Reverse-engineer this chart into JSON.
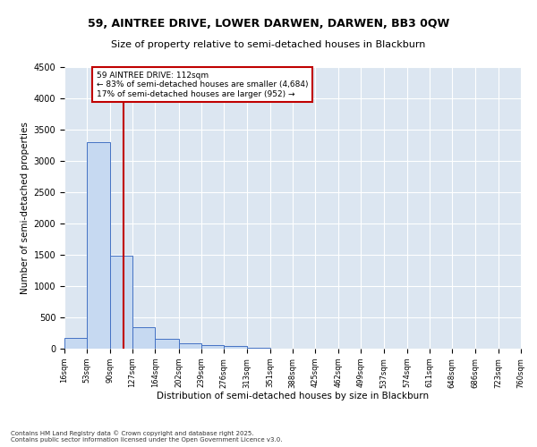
{
  "title1": "59, AINTREE DRIVE, LOWER DARWEN, DARWEN, BB3 0QW",
  "title2": "Size of property relative to semi-detached houses in Blackburn",
  "xlabel": "Distribution of semi-detached houses by size in Blackburn",
  "ylabel": "Number of semi-detached properties",
  "footnote1": "Contains HM Land Registry data © Crown copyright and database right 2025.",
  "footnote2": "Contains public sector information licensed under the Open Government Licence v3.0.",
  "annotation_title": "59 AINTREE DRIVE: 112sqm",
  "annotation_line1": "← 83% of semi-detached houses are smaller (4,684)",
  "annotation_line2": "17% of semi-detached houses are larger (952) →",
  "property_size": 112,
  "bin_edges": [
    16,
    53,
    90,
    127,
    164,
    202,
    239,
    276,
    313,
    351,
    388,
    425,
    462,
    499,
    537,
    574,
    611,
    648,
    686,
    723,
    760
  ],
  "bin_counts": [
    175,
    3300,
    1480,
    350,
    155,
    90,
    60,
    40,
    15,
    0,
    0,
    0,
    0,
    0,
    0,
    0,
    0,
    0,
    0,
    0
  ],
  "bar_color": "#c6d9f1",
  "bar_edge_color": "#4472c4",
  "line_color": "#c00000",
  "box_edge_color": "#c00000",
  "background_color": "#dce6f1",
  "ylim": [
    0,
    4500
  ],
  "yticks": [
    0,
    500,
    1000,
    1500,
    2000,
    2500,
    3000,
    3500,
    4000,
    4500
  ],
  "tick_labels": [
    "16sqm",
    "53sqm",
    "90sqm",
    "127sqm",
    "164sqm",
    "202sqm",
    "239sqm",
    "276sqm",
    "313sqm",
    "351sqm",
    "388sqm",
    "425sqm",
    "462sqm",
    "499sqm",
    "537sqm",
    "574sqm",
    "611sqm",
    "648sqm",
    "686sqm",
    "723sqm",
    "760sqm"
  ]
}
